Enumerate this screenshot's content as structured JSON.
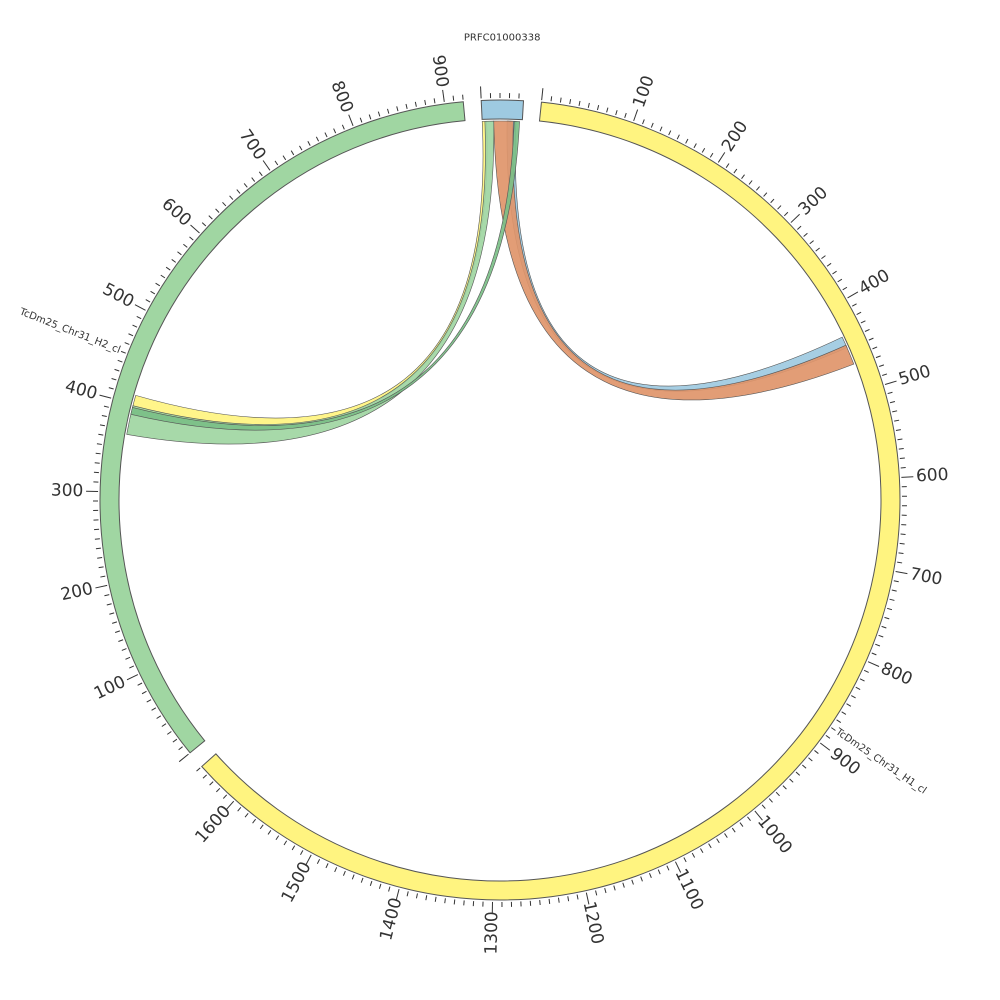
{
  "diagram": {
    "type": "circos",
    "chromosomes": [
      {
        "id": "h1",
        "name": "TcDm25_Chr31_H1_cl",
        "length": 1650,
        "color": "#FFF480",
        "label_at": 880,
        "ticks": [
          100,
          200,
          300,
          400,
          500,
          600,
          700,
          800,
          900,
          1000,
          1100,
          1200,
          1300,
          1400,
          1500,
          1600
        ]
      },
      {
        "id": "h2",
        "name": "TcDm25_Chr31_H2_cl",
        "length": 920,
        "color": "#A0D6A2",
        "label_at": 450,
        "ticks": [
          100,
          200,
          300,
          400,
          500,
          600,
          700,
          800,
          900
        ]
      },
      {
        "id": "prfc",
        "name": "PRFC01000338",
        "length": 45,
        "color": "#9ECAE1",
        "label_at": 22,
        "ticks": []
      }
    ],
    "links": [
      {
        "id": "h2-yellow",
        "color": "#FFF480",
        "from": {
          "chr": "h2",
          "start": 395,
          "end": 410
        },
        "to": {
          "chr": "prfc",
          "start": 0,
          "end": 5
        }
      },
      {
        "id": "h2-green",
        "color": "#A0D6A2",
        "from": {
          "chr": "h2",
          "start": 365,
          "end": 398
        },
        "to": {
          "chr": "prfc",
          "start": 3,
          "end": 13
        }
      },
      {
        "id": "h1-blue",
        "color": "#9ECAE1",
        "from": {
          "chr": "h1",
          "start": 435,
          "end": 448
        },
        "to": {
          "chr": "prfc",
          "start": 28,
          "end": 38
        }
      },
      {
        "id": "h1-orange",
        "color": "#E0956A",
        "from": {
          "chr": "h1",
          "start": 445,
          "end": 468
        },
        "to": {
          "chr": "prfc",
          "start": 13,
          "end": 35
        }
      },
      {
        "id": "h2-darkgreen",
        "color": "#7BBF87",
        "from": {
          "chr": "h2",
          "start": 388,
          "end": 396
        },
        "to": {
          "chr": "prfc",
          "start": 36,
          "end": 42
        }
      }
    ]
  }
}
